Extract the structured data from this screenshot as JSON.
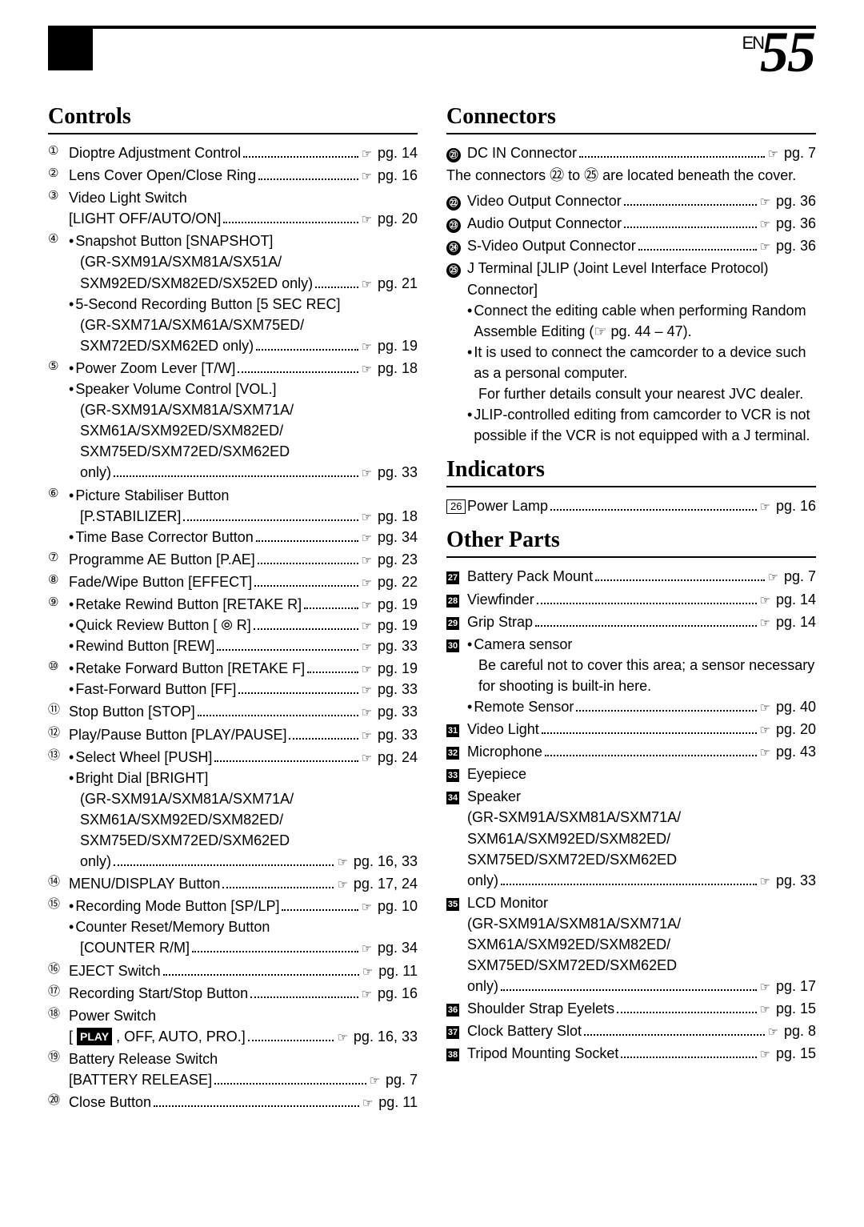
{
  "page": {
    "prefix": "EN",
    "number": "55"
  },
  "sections": {
    "controls": "Controls",
    "connectors": "Connectors",
    "indicators": "Indicators",
    "other": "Other Parts"
  },
  "pg_label": "pg.",
  "note_cover": "The connectors ㉒ to ㉕ are located beneath the cover.",
  "left": [
    {
      "m": "①",
      "lines": [
        {
          "t": "Dioptre Adjustment Control",
          "p": "14"
        }
      ]
    },
    {
      "m": "②",
      "lines": [
        {
          "t": "Lens Cover Open/Close Ring",
          "p": "16"
        }
      ]
    },
    {
      "m": "③",
      "lines": [
        {
          "t": "Video Light Switch"
        },
        {
          "t": "[LIGHT OFF/AUTO/ON]",
          "p": "20"
        }
      ]
    },
    {
      "m": "④",
      "lines": [
        {
          "b": "•",
          "t": "Snapshot Button [SNAPSHOT]"
        },
        {
          "t": "(GR-SXM91A/SXM81A/SX51A/",
          "indent": true
        },
        {
          "t": "SXM92ED/SXM82ED/SX52ED only)",
          "p": "21",
          "indent": true
        },
        {
          "b": "•",
          "t": "5-Second Recording Button [5 SEC REC]"
        },
        {
          "t": "(GR-SXM71A/SXM61A/SXM75ED/",
          "indent": true
        },
        {
          "t": "SXM72ED/SXM62ED only)",
          "p": "19",
          "indent": true
        }
      ]
    },
    {
      "m": "⑤",
      "lines": [
        {
          "b": "•",
          "t": "Power Zoom Lever [T/W]",
          "p": "18"
        },
        {
          "b": "•",
          "t": "Speaker Volume Control [VOL.]"
        },
        {
          "t": "(GR-SXM91A/SXM81A/SXM71A/",
          "indent": true
        },
        {
          "t": "SXM61A/SXM92ED/SXM82ED/",
          "indent": true
        },
        {
          "t": "SXM75ED/SXM72ED/SXM62ED",
          "indent": true
        },
        {
          "t": "only)",
          "p": "33",
          "indent": true
        }
      ]
    },
    {
      "m": "⑥",
      "lines": [
        {
          "b": "•",
          "t": "Picture Stabiliser Button"
        },
        {
          "t": "[P.STABILIZER]",
          "p": "18",
          "indent": true
        },
        {
          "b": "•",
          "t": "Time Base Corrector Button",
          "p": "34"
        }
      ]
    },
    {
      "m": "⑦",
      "lines": [
        {
          "t": "Programme AE Button [P.AE]",
          "p": "23"
        }
      ]
    },
    {
      "m": "⑧",
      "lines": [
        {
          "t": "Fade/Wipe Button [EFFECT]",
          "p": "22"
        }
      ]
    },
    {
      "m": "⑨",
      "lines": [
        {
          "b": "•",
          "t": "Retake Rewind Button [RETAKE R]",
          "p": "19"
        },
        {
          "b": "•",
          "t": "Quick Review Button [ ⦾ R]",
          "p": "19"
        },
        {
          "b": "•",
          "t": "Rewind Button [REW]",
          "p": "33"
        }
      ]
    },
    {
      "m": "⑩",
      "lines": [
        {
          "b": "•",
          "t": "Retake Forward Button [RETAKE F]",
          "p": "19"
        },
        {
          "b": "•",
          "t": "Fast-Forward Button [FF]",
          "p": "33"
        }
      ]
    },
    {
      "m": "⑪",
      "lines": [
        {
          "t": "Stop Button [STOP]",
          "p": "33"
        }
      ]
    },
    {
      "m": "⑫",
      "lines": [
        {
          "t": "Play/Pause Button [PLAY/PAUSE]",
          "p": "33"
        }
      ]
    },
    {
      "m": "⑬",
      "lines": [
        {
          "b": "•",
          "t": "Select Wheel [PUSH]",
          "p": "24"
        },
        {
          "b": "•",
          "t": "Bright Dial [BRIGHT]"
        },
        {
          "t": "(GR-SXM91A/SXM81A/SXM71A/",
          "indent": true
        },
        {
          "t": "SXM61A/SXM92ED/SXM82ED/",
          "indent": true
        },
        {
          "t": "SXM75ED/SXM72ED/SXM62ED",
          "indent": true
        },
        {
          "t": "only)",
          "p": "16, 33",
          "indent": true
        }
      ]
    },
    {
      "m": "⑭",
      "lines": [
        {
          "t": "MENU/DISPLAY Button",
          "p": "17, 24"
        }
      ]
    },
    {
      "m": "⑮",
      "lines": [
        {
          "b": "•",
          "t": "Recording Mode Button [SP/LP]",
          "p": "10"
        },
        {
          "b": "•",
          "t": "Counter Reset/Memory Button"
        },
        {
          "t": "[COUNTER R/M]",
          "p": "34",
          "indent": true
        }
      ]
    },
    {
      "m": "⑯",
      "lines": [
        {
          "t": "EJECT Switch",
          "p": "11"
        }
      ]
    },
    {
      "m": "⑰",
      "lines": [
        {
          "t": "Recording Start/Stop Button",
          "p": "16"
        }
      ]
    },
    {
      "m": "⑱",
      "lines": [
        {
          "t": "Power Switch"
        },
        {
          "t": "[ __PLAY__ , OFF, AUTO, PRO.]",
          "p": "16, 33"
        }
      ]
    },
    {
      "m": "⑲",
      "lines": [
        {
          "t": "Battery Release Switch"
        },
        {
          "t": "[BATTERY RELEASE]",
          "p": "7"
        }
      ]
    },
    {
      "m": "⑳",
      "lines": [
        {
          "t": "Close Button",
          "p": "11"
        }
      ]
    }
  ],
  "connectors": [
    {
      "m": "㉑",
      "style": "bc",
      "lines": [
        {
          "t": "DC IN Connector",
          "p": "7"
        }
      ]
    }
  ],
  "connectors2": [
    {
      "m": "㉒",
      "style": "bc",
      "lines": [
        {
          "t": "Video Output Connector",
          "p": "36"
        }
      ]
    },
    {
      "m": "㉓",
      "style": "bc",
      "lines": [
        {
          "t": "Audio Output Connector",
          "p": "36"
        }
      ]
    },
    {
      "m": "㉔",
      "style": "bc",
      "lines": [
        {
          "t": "S-Video Output Connector",
          "p": "36"
        }
      ]
    },
    {
      "m": "㉕",
      "style": "bc",
      "lines": [
        {
          "t": "J Terminal [JLIP (Joint Level Interface Protocol) Connector]"
        },
        {
          "b": "•",
          "t": "Connect the editing cable when performing Random Assemble Editing (☞ pg. 44 – 47)."
        },
        {
          "b": "•",
          "t": "It is used to connect the camcorder to a device such as a personal computer."
        },
        {
          "t": "For further details consult your nearest JVC dealer.",
          "indent": true
        },
        {
          "b": "•",
          "t": "JLIP-controlled editing from camcorder to VCR is not possible if the VCR is not equipped with a J terminal."
        }
      ]
    }
  ],
  "indicators": [
    {
      "m": "26",
      "style": "box",
      "lines": [
        {
          "t": "Power Lamp",
          "p": "16"
        }
      ]
    }
  ],
  "other": [
    {
      "m": "27",
      "style": "bs",
      "lines": [
        {
          "t": "Battery Pack Mount",
          "p": "7"
        }
      ]
    },
    {
      "m": "28",
      "style": "bs",
      "lines": [
        {
          "t": "Viewfinder",
          "p": "14"
        }
      ]
    },
    {
      "m": "29",
      "style": "bs",
      "lines": [
        {
          "t": "Grip Strap",
          "p": "14"
        }
      ]
    },
    {
      "m": "30",
      "style": "bs",
      "lines": [
        {
          "b": "•",
          "t": "Camera sensor"
        },
        {
          "t": "Be careful not to cover this area; a sensor necessary for shooting is built-in here.",
          "indent": true
        },
        {
          "b": "•",
          "t": "Remote Sensor",
          "p": "40"
        }
      ]
    },
    {
      "m": "31",
      "style": "bs",
      "lines": [
        {
          "t": "Video Light",
          "p": "20"
        }
      ]
    },
    {
      "m": "32",
      "style": "bs",
      "lines": [
        {
          "t": "Microphone",
          "p": "43"
        }
      ]
    },
    {
      "m": "33",
      "style": "bs",
      "lines": [
        {
          "t": "Eyepiece"
        }
      ]
    },
    {
      "m": "34",
      "style": "bs",
      "lines": [
        {
          "t": "Speaker"
        },
        {
          "t": "(GR-SXM91A/SXM81A/SXM71A/"
        },
        {
          "t": "SXM61A/SXM92ED/SXM82ED/"
        },
        {
          "t": "SXM75ED/SXM72ED/SXM62ED"
        },
        {
          "t": "only)",
          "p": "33"
        }
      ]
    },
    {
      "m": "35",
      "style": "bs",
      "lines": [
        {
          "t": "LCD Monitor"
        },
        {
          "t": "(GR-SXM91A/SXM81A/SXM71A/"
        },
        {
          "t": "SXM61A/SXM92ED/SXM82ED/"
        },
        {
          "t": "SXM75ED/SXM72ED/SXM62ED"
        },
        {
          "t": "only)",
          "p": "17"
        }
      ]
    },
    {
      "m": "36",
      "style": "bs",
      "lines": [
        {
          "t": "Shoulder Strap Eyelets",
          "p": "15"
        }
      ]
    },
    {
      "m": "37",
      "style": "bs",
      "lines": [
        {
          "t": "Clock Battery Slot",
          "p": "8"
        }
      ]
    },
    {
      "m": "38",
      "style": "bs",
      "lines": [
        {
          "t": "Tripod Mounting Socket",
          "p": "15"
        }
      ]
    }
  ]
}
